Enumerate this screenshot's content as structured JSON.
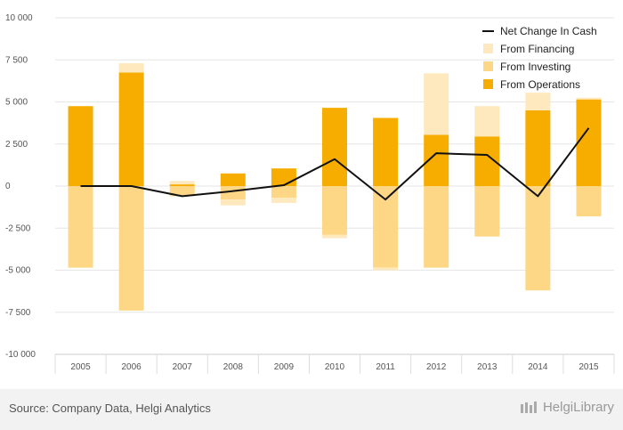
{
  "chart_data": {
    "type": "bar",
    "stacked": true,
    "categories": [
      "2005",
      "2006",
      "2007",
      "2008",
      "2009",
      "2010",
      "2011",
      "2012",
      "2013",
      "2014",
      "2015"
    ],
    "series": [
      {
        "name": "From Operations",
        "type": "bar",
        "color": "#f7ad00",
        "values": [
          4750,
          6750,
          100,
          750,
          1050,
          4650,
          4050,
          3050,
          2950,
          4500,
          5150
        ]
      },
      {
        "name": "From Investing",
        "type": "bar",
        "color": "#fdd785",
        "values": [
          -4850,
          -7400,
          -600,
          -800,
          -700,
          -2900,
          -4850,
          -4850,
          -3000,
          -6200,
          -1800
        ]
      },
      {
        "name": "From Financing",
        "type": "bar",
        "color": "#fee9bf",
        "values": [
          0,
          550,
          200,
          -350,
          -300,
          -200,
          -150,
          3650,
          1800,
          1050,
          100
        ]
      },
      {
        "name": "Net Change In Cash",
        "type": "line",
        "color": "#111111",
        "values": [
          0,
          0,
          -600,
          -300,
          50,
          1600,
          -800,
          1950,
          1850,
          -600,
          3450
        ]
      }
    ],
    "ylim": [
      -10000,
      10000
    ],
    "yticks": [
      10000,
      7500,
      5000,
      2500,
      0,
      -2500,
      -5000,
      -7500,
      -10000
    ],
    "ytick_labels": [
      "10 000",
      "7 500",
      "5 000",
      "2 500",
      "0",
      "-2 500",
      "-5 000",
      "-7 500",
      "-10 000"
    ],
    "grid": true,
    "legend_position": "top-right",
    "legend_order": [
      "Net Change In Cash",
      "From Financing",
      "From Investing",
      "From Operations"
    ]
  },
  "footer": {
    "source": "Source: Company Data, Helgi Analytics",
    "brand": "HelgiLibrary"
  }
}
